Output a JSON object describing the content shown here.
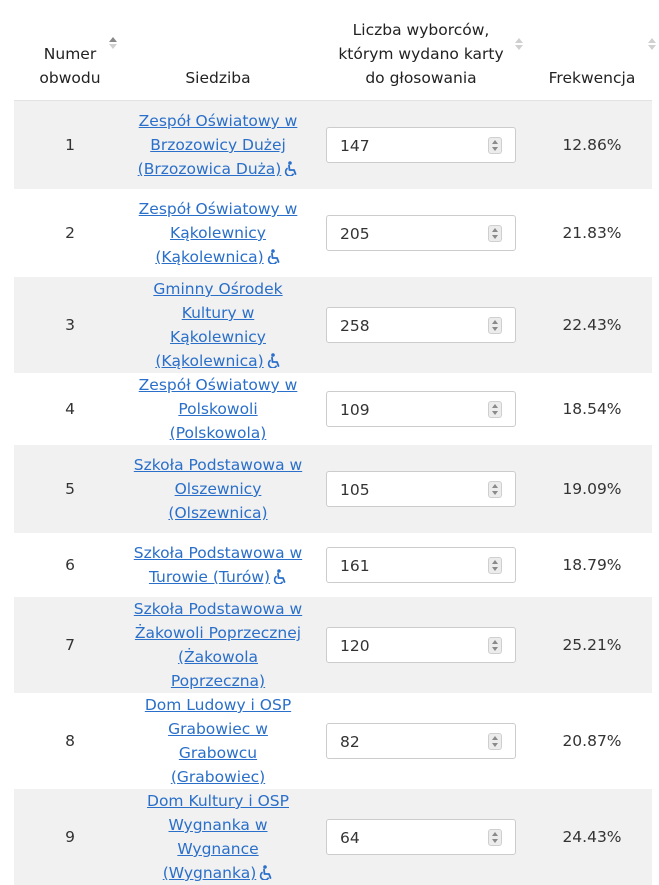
{
  "headers": {
    "col1": "Numer obwodu",
    "col2": "Siedziba",
    "col3": "Liczba wyborców, którym wydano karty do głosowania",
    "col4": "Frekwencja"
  },
  "rows": [
    {
      "number": "1",
      "location": "Zespół Oświatowy w Brzozowicy Dużej (Brzozowica Duża)",
      "accessible": true,
      "ballots": "147",
      "turnout": "12.86%"
    },
    {
      "number": "2",
      "location": "Zespół Oświatowy w Kąkolewnicy (Kąkolewnica)",
      "accessible": true,
      "ballots": "205",
      "turnout": "21.83%"
    },
    {
      "number": "3",
      "location": "Gminny Ośrodek Kultury w Kąkolewnicy (Kąkolewnica)",
      "accessible": true,
      "ballots": "258",
      "turnout": "22.43%"
    },
    {
      "number": "4",
      "location": "Zespół Oświatowy w Polskowoli (Polskowola)",
      "accessible": false,
      "ballots": "109",
      "turnout": "18.54%"
    },
    {
      "number": "5",
      "location": "Szkoła Podstawowa w Olszewnicy (Olszewnica)",
      "accessible": false,
      "ballots": "105",
      "turnout": "19.09%"
    },
    {
      "number": "6",
      "location": "Szkoła Podstawowa w Turowie (Turów)",
      "accessible": true,
      "ballots": "161",
      "turnout": "18.79%"
    },
    {
      "number": "7",
      "location": "Szkoła Podstawowa w Żakowoli Poprzecznej (Żakowola Poprzeczna)",
      "accessible": false,
      "ballots": "120",
      "turnout": "25.21%"
    },
    {
      "number": "8",
      "location": "Dom Ludowy i OSP Grabowiec w Grabowcu (Grabowiec)",
      "accessible": false,
      "ballots": "82",
      "turnout": "20.87%"
    },
    {
      "number": "9",
      "location": "Dom Kultury i OSP Wygnanka w Wygnance (Wygnanka)",
      "accessible": true,
      "ballots": "64",
      "turnout": "24.43%"
    }
  ],
  "icons": {
    "accessibility": "wheelchair-icon",
    "sort": "sort-arrows-icon",
    "spinner": "number-spinner-icon"
  },
  "colors": {
    "link": "#2a6fc9",
    "stripe": "#f1f1f1",
    "text": "#333333"
  }
}
